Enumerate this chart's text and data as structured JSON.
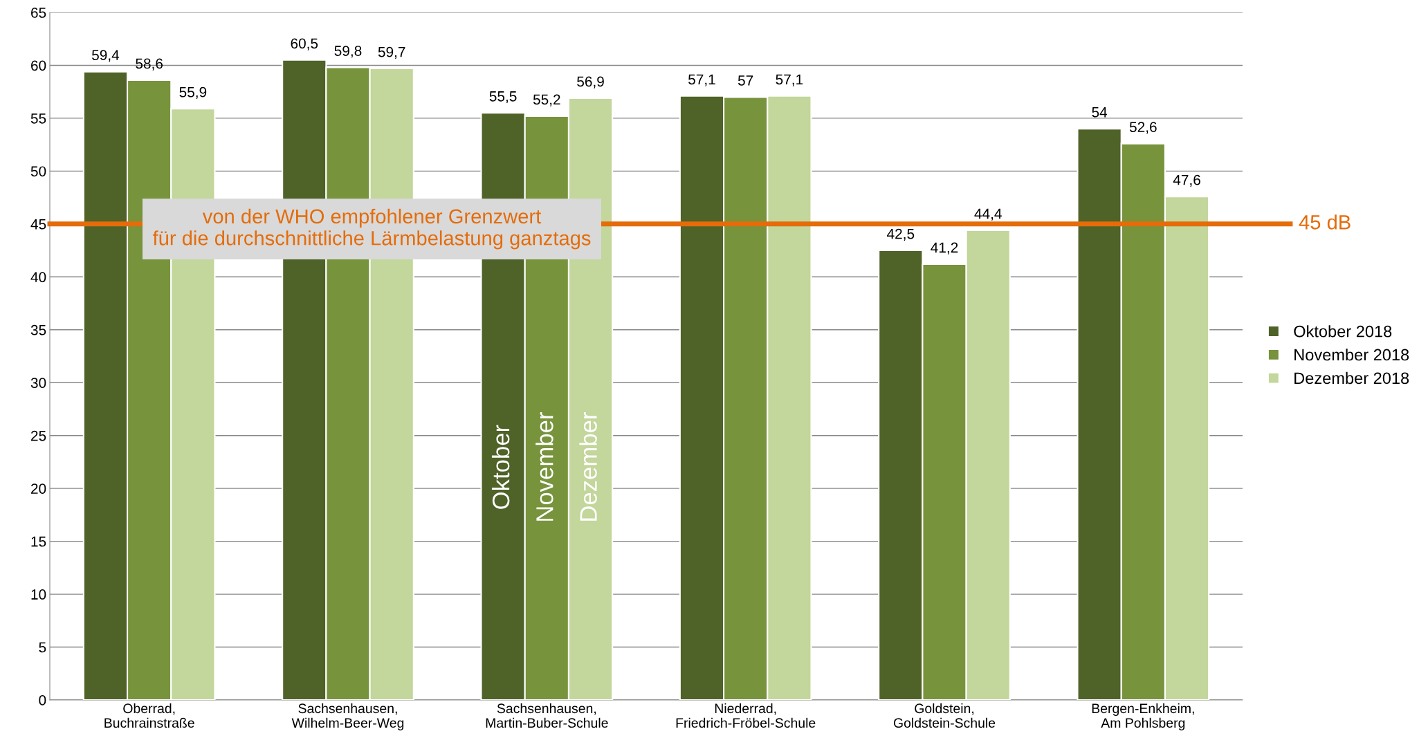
{
  "chart_data": {
    "type": "bar",
    "categories": [
      "Oberrad,\nBuchrainstraße",
      "Sachsenhausen,\nWilhelm-Beer-Weg",
      "Sachsenhausen,\nMartin-Buber-Schule",
      "Niederrad,\nFriedrich-Fröbel-Schule",
      "Goldstein,\nGoldstein-Schule",
      "Bergen-Enkheim,\nAm Pohlsberg"
    ],
    "series": [
      {
        "name": "Oktober 2018",
        "color": "#4f6228",
        "values": [
          59.4,
          60.5,
          55.5,
          57.1,
          42.5,
          54
        ],
        "value_labels": [
          "59,4",
          "60,5",
          "55,5",
          "57,1",
          "42,5",
          "54"
        ]
      },
      {
        "name": "November 2018",
        "color": "#77933c",
        "values": [
          58.6,
          59.8,
          55.2,
          57,
          41.2,
          52.6
        ],
        "value_labels": [
          "58,6",
          "59,8",
          "55,2",
          "57",
          "41,2",
          "52,6"
        ]
      },
      {
        "name": "Dezember 2018",
        "color": "#c3d69b",
        "values": [
          55.9,
          59.7,
          56.9,
          57.1,
          44.4,
          47.6
        ],
        "value_labels": [
          "55,9",
          "59,7",
          "56,9",
          "57,1",
          "44,4",
          "47,6"
        ]
      }
    ],
    "ylim": [
      0,
      65
    ],
    "yticks": [
      0,
      5,
      10,
      15,
      20,
      25,
      30,
      35,
      40,
      45,
      50,
      55,
      60,
      65
    ],
    "grid": "y",
    "legend": "right",
    "ref_lines": [
      {
        "axis": "y",
        "value": 45,
        "label": "45 dB",
        "color": "#e46c0a"
      }
    ],
    "annotations": [
      "von der WHO empfohlener Grenzwert\nfür die durchschnittliche Lärmbelastung ganztags",
      "Oktober",
      "November",
      "Dezember"
    ]
  }
}
